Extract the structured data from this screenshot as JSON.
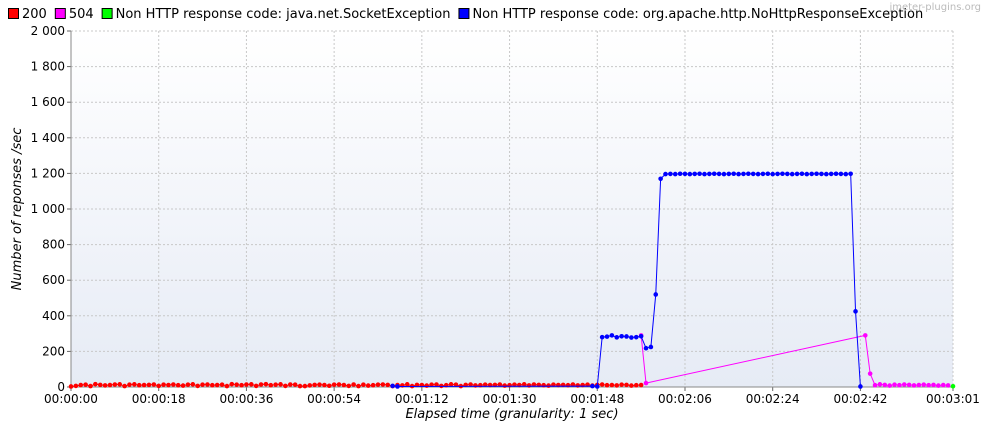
{
  "chart_data": {
    "type": "line",
    "watermark": "jmeter-plugins.org",
    "xlabel": "Elapsed time (granularity: 1 sec)",
    "ylabel": "Number of reponses /sec",
    "xlim": [
      0,
      181
    ],
    "ylim": [
      0,
      2000
    ],
    "x_ticks": [
      0,
      18,
      36,
      54,
      72,
      90,
      108,
      126,
      144,
      162,
      181
    ],
    "x_tick_labels": [
      "00:00:00",
      "00:00:18",
      "00:00:36",
      "00:00:54",
      "00:01:12",
      "00:01:30",
      "00:01:48",
      "00:02:06",
      "00:02:24",
      "00:02:42",
      "00:03:01"
    ],
    "y_ticks": [
      0,
      200,
      400,
      600,
      800,
      1000,
      1200,
      1400,
      1600,
      1800,
      2000
    ],
    "y_tick_labels": [
      "0",
      "200",
      "400",
      "600",
      "800",
      "1 000",
      "1 200",
      "1 400",
      "1 600",
      "1 800",
      "2 000"
    ],
    "grid": true,
    "legend_position": "top",
    "series": [
      {
        "name": "200",
        "color": "#ff0000",
        "x": [
          0,
          1,
          2,
          3,
          4,
          5,
          6,
          7,
          8,
          9,
          10,
          11,
          12,
          13,
          14,
          15,
          16,
          17,
          18,
          19,
          20,
          21,
          22,
          23,
          24,
          25,
          26,
          27,
          28,
          29,
          30,
          31,
          32,
          33,
          34,
          35,
          36,
          37,
          38,
          39,
          40,
          41,
          42,
          43,
          44,
          45,
          46,
          47,
          48,
          49,
          50,
          51,
          52,
          53,
          54,
          55,
          56,
          57,
          58,
          59,
          60,
          61,
          62,
          63,
          64,
          65,
          66,
          67,
          68,
          69,
          70,
          71,
          72,
          73,
          74,
          75,
          76,
          77,
          78,
          79,
          80,
          81,
          82,
          83,
          84,
          85,
          86,
          87,
          88,
          89,
          90,
          91,
          92,
          93,
          94,
          95,
          96,
          97,
          98,
          99,
          100,
          101,
          102,
          103,
          104,
          105,
          106,
          107,
          108,
          109,
          110,
          111,
          112,
          113,
          114,
          115,
          116,
          117
        ],
        "values": [
          3,
          6,
          11,
          13,
          5,
          16,
          12,
          9,
          11,
          14,
          15,
          5,
          13,
          15,
          10,
          11,
          12,
          14,
          6,
          13,
          11,
          14,
          10,
          8,
          13,
          15,
          6,
          13,
          14,
          10,
          11,
          13,
          5,
          16,
          13,
          10,
          14,
          15,
          6,
          14,
          16,
          10,
          13,
          15,
          6,
          14,
          13,
          5,
          5,
          9,
          12,
          13,
          11,
          7,
          13,
          14,
          11,
          6,
          14,
          5,
          13,
          8,
          10,
          13,
          14,
          12,
          5,
          11,
          9,
          15,
          5,
          12,
          11,
          8,
          13,
          14,
          6,
          10,
          15,
          13,
          5,
          12,
          14,
          9,
          10,
          13,
          11,
          12,
          14,
          8,
          10,
          13,
          11,
          15,
          9,
          14,
          12,
          10,
          8,
          13,
          11,
          12,
          10,
          14,
          9,
          11,
          13,
          8,
          12,
          14,
          10,
          11,
          9,
          13,
          12,
          8,
          10,
          11
        ]
      },
      {
        "name": "504",
        "color": "#ff00ff",
        "x": [
          117,
          118,
          163,
          164,
          165,
          166,
          167,
          168,
          169,
          170,
          171,
          172,
          173,
          174,
          175,
          176,
          177,
          178,
          179,
          180
        ],
        "values": [
          290,
          22,
          290,
          75,
          10,
          15,
          12,
          8,
          13,
          10,
          14,
          12,
          9,
          11,
          13,
          10,
          12,
          8,
          11,
          9
        ]
      },
      {
        "name": "Non HTTP response code: java.net.SocketException",
        "color": "#00ff00",
        "x": [
          181
        ],
        "values": [
          4
        ]
      },
      {
        "name": "Non HTTP response code: org.apache.http.NoHttpResponseException",
        "color": "#0000ff",
        "x": [
          66,
          67,
          107,
          108,
          109,
          110,
          111,
          112,
          113,
          114,
          115,
          116,
          117,
          118,
          119,
          120,
          121,
          122,
          123,
          124,
          125,
          126,
          127,
          128,
          129,
          130,
          131,
          132,
          133,
          134,
          135,
          136,
          137,
          138,
          139,
          140,
          141,
          142,
          143,
          144,
          145,
          146,
          147,
          148,
          149,
          150,
          151,
          152,
          153,
          154,
          155,
          156,
          157,
          158,
          159,
          160,
          161,
          162
        ],
        "values": [
          6,
          3,
          5,
          3,
          280,
          283,
          290,
          279,
          285,
          284,
          278,
          280,
          285,
          218,
          225,
          520,
          1170,
          1196,
          1197,
          1196,
          1198,
          1197,
          1196,
          1197,
          1198,
          1196,
          1197,
          1198,
          1197,
          1196,
          1197,
          1198,
          1196,
          1197,
          1198,
          1197,
          1196,
          1197,
          1198,
          1196,
          1197,
          1198,
          1197,
          1196,
          1197,
          1198,
          1196,
          1197,
          1198,
          1197,
          1196,
          1197,
          1198,
          1197,
          1196,
          1198,
          425,
          3
        ]
      }
    ]
  }
}
